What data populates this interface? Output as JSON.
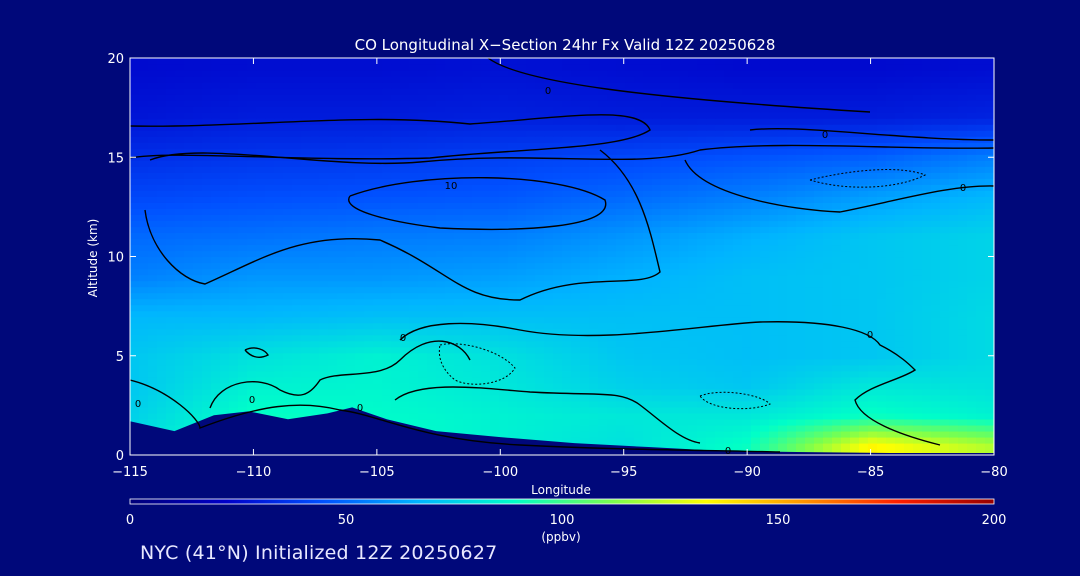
{
  "chart_data": {
    "type": "heatmap",
    "title": "CO Longitudinal X−Section 24hr  Fx Valid 12Z 20250628",
    "xlabel": "Longitude",
    "ylabel": "Altitude (km)",
    "xlim": [
      -115,
      -80
    ],
    "ylim": [
      0,
      20
    ],
    "x_ticks": [
      -115,
      -110,
      -105,
      -100,
      -95,
      -90,
      -85,
      -80
    ],
    "x_tick_labels": [
      "−115",
      "−110",
      "−105",
      "−100",
      "−95",
      "−90",
      "−85",
      "−80"
    ],
    "y_ticks": [
      0,
      5,
      10,
      15,
      20
    ],
    "y_tick_labels": [
      "0",
      "5",
      "10",
      "15",
      "20"
    ],
    "colorbar": {
      "min": 0,
      "max": 200,
      "ticks": [
        0,
        50,
        100,
        150,
        200
      ],
      "tick_labels": [
        "0",
        "50",
        "100",
        "150",
        "200"
      ],
      "units": "(ppbv)"
    },
    "contour_labels": [
      "0",
      "10",
      "0",
      "0",
      "0",
      "0",
      "0",
      "0",
      "0",
      "0"
    ],
    "field": {
      "x": [
        -115,
        -110,
        -105,
        -100,
        -95,
        -90,
        -85,
        -80
      ],
      "y": [
        0.5,
        2,
        3.5,
        5,
        7,
        9,
        11,
        13,
        15,
        17,
        19.5
      ],
      "values": [
        [
          80,
          95,
          90,
          85,
          80,
          90,
          135,
          120
        ],
        [
          75,
          90,
          88,
          85,
          82,
          82,
          90,
          85
        ],
        [
          72,
          85,
          86,
          82,
          75,
          72,
          82,
          80
        ],
        [
          72,
          80,
          85,
          80,
          72,
          70,
          72,
          78
        ],
        [
          68,
          68,
          70,
          70,
          70,
          70,
          72,
          78
        ],
        [
          55,
          60,
          60,
          62,
          66,
          70,
          72,
          76
        ],
        [
          50,
          52,
          54,
          55,
          60,
          66,
          72,
          76
        ],
        [
          42,
          44,
          45,
          46,
          50,
          55,
          62,
          68
        ],
        [
          35,
          37,
          38,
          40,
          42,
          45,
          48,
          55
        ],
        [
          28,
          30,
          30,
          31,
          30,
          30,
          30,
          32
        ],
        [
          25,
          26,
          26,
          27,
          26,
          25,
          25,
          26
        ]
      ]
    },
    "terrain": {
      "x": [
        -115,
        -113.2,
        -111.6,
        -110.2,
        -108.6,
        -107,
        -106,
        -104.6,
        -102.6,
        -100,
        -97,
        -94,
        -91,
        -88,
        -84,
        -80
      ],
      "y": [
        1.7,
        1.2,
        2.0,
        2.2,
        1.8,
        2.1,
        2.4,
        1.8,
        1.2,
        0.9,
        0.6,
        0.4,
        0.2,
        0.15,
        0.1,
        0.1
      ]
    }
  },
  "footer": "NYC (41°N) Initialized 12Z 20250627",
  "colors": {
    "background": "#00087a",
    "contour": "#000000",
    "colormap": [
      "#000078",
      "#0000c8",
      "#0050ff",
      "#00b4ff",
      "#00ffc8",
      "#78ff50",
      "#ffff00",
      "#ff9600",
      "#ff1e00",
      "#960000"
    ]
  }
}
